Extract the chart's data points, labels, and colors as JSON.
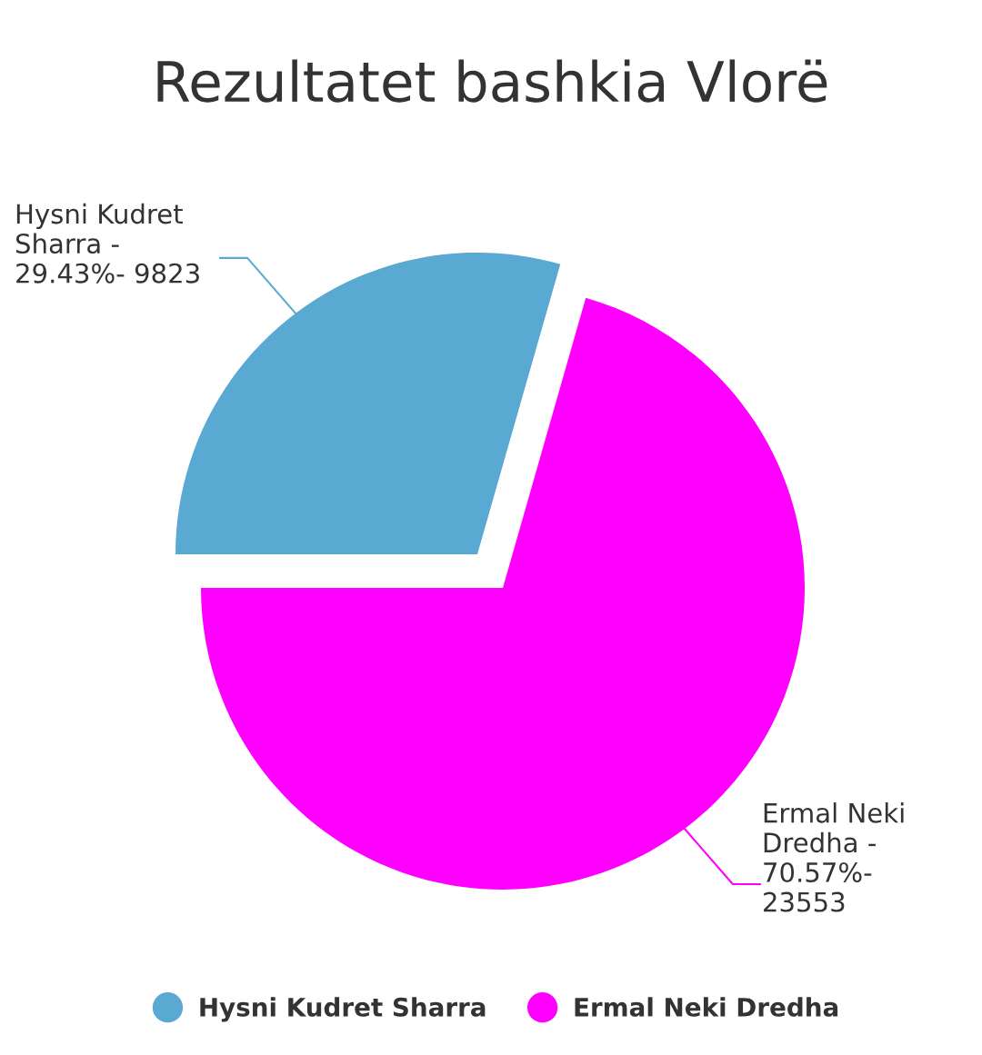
{
  "chart_data": {
    "type": "pie",
    "title": "Rezultatet bashkia Vlorë",
    "categories": [
      "Hysni Kudret Sharra",
      "Ermal Neki Dredha"
    ],
    "values": [
      29.43,
      70.57
    ],
    "colors": [
      "#5aa9d3",
      "#ff00ff"
    ],
    "annotations": [
      "Hysni Kudret Sharra - 29.43%- 9823",
      "Ermal Neki Dredha - 70.57%- 23553"
    ],
    "legend": "bottom"
  }
}
